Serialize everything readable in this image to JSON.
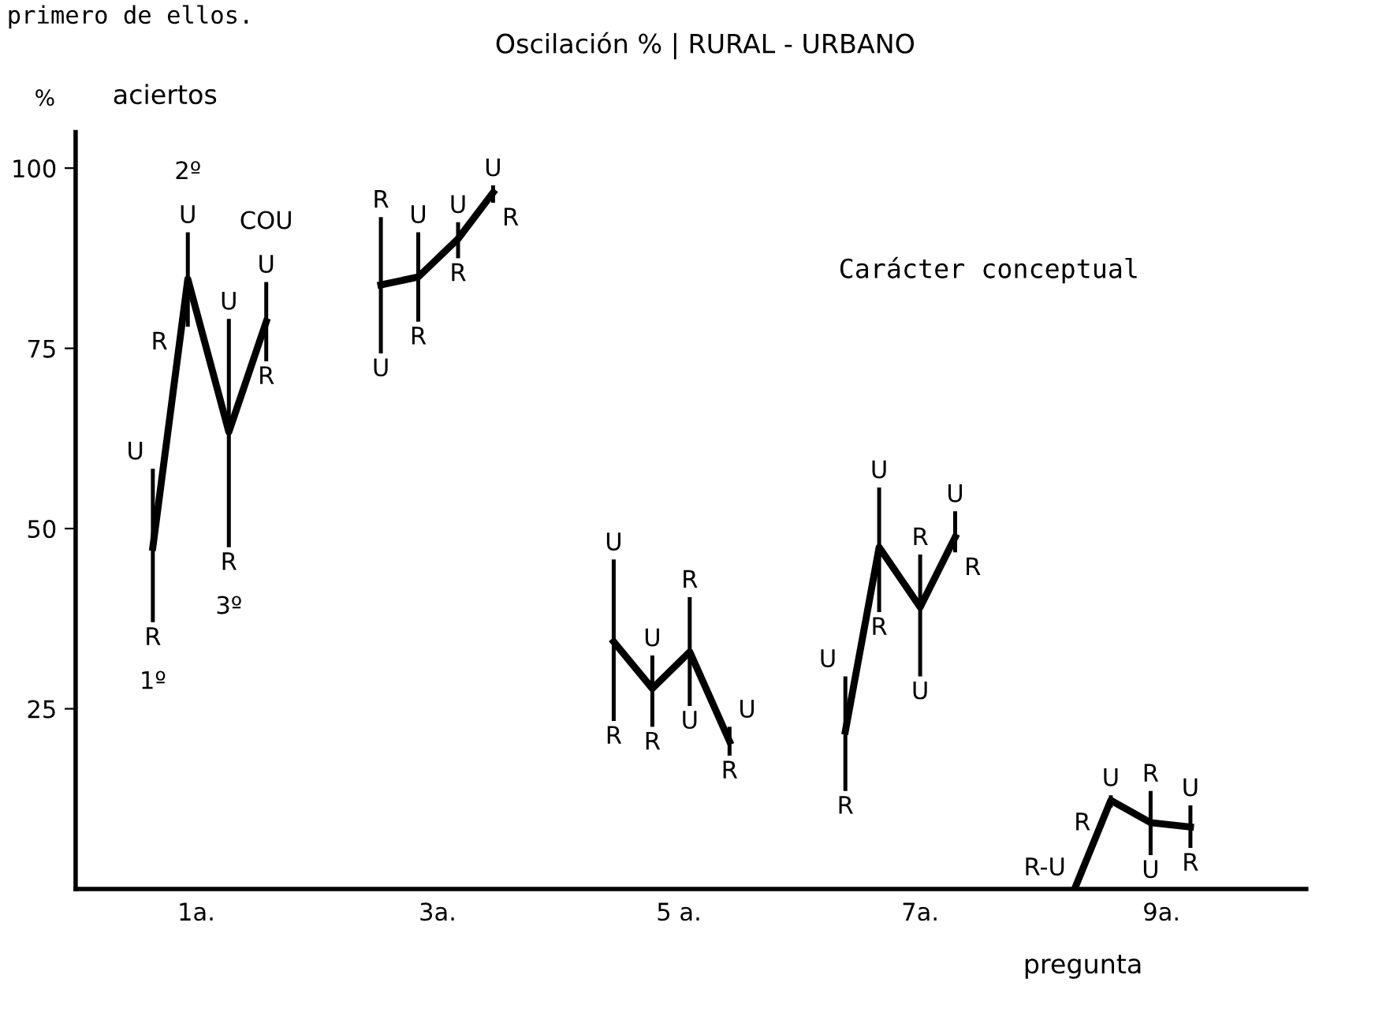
{
  "chart_data": {
    "type": "line",
    "title": "Oscilación % | RURAL - URBANO",
    "ylabel": "%",
    "xlabel": "pregunta",
    "xlim": [
      0,
      10.2
    ],
    "ylim": [
      0,
      105
    ],
    "xticks": [
      {
        "value": 1,
        "label": "1a."
      },
      {
        "value": 3,
        "label": "3a."
      },
      {
        "value": 5,
        "label": "5 a."
      },
      {
        "value": 7,
        "label": "7a."
      },
      {
        "value": 9,
        "label": "9a."
      }
    ],
    "yticks": [
      25,
      50,
      75,
      100
    ],
    "grid": false,
    "legend": false,
    "marker": "none",
    "line_style": "solid",
    "series": [
      {
        "color": "#000000",
        "x": [
          0.64,
          0.93,
          1.27,
          1.58
        ],
        "values": [
          47.4,
          84.6,
          63.4,
          78.7
        ],
        "errors": [
          [
            37.0,
            58.3
          ],
          [
            78.0,
            91.1
          ],
          [
            47.4,
            79.1
          ],
          [
            73.2,
            84.2
          ]
        ]
      },
      {
        "color": "#000000",
        "x": [
          2.53,
          2.84,
          3.17,
          3.46
        ],
        "values": [
          83.8,
          84.9,
          90.2,
          96.6
        ],
        "errors": [
          [
            74.3,
            93.2
          ],
          [
            78.7,
            91.1
          ],
          [
            87.5,
            92.5
          ],
          [
            95.2,
            97.6
          ]
        ]
      },
      {
        "color": "#000000",
        "x": [
          4.46,
          4.78,
          5.09,
          5.42
        ],
        "values": [
          34.3,
          27.8,
          32.9,
          20.5
        ],
        "errors": [
          [
            23.3,
            45.7
          ],
          [
            22.5,
            32.4
          ],
          [
            25.4,
            40.5
          ],
          [
            18.5,
            22.5
          ]
        ]
      },
      {
        "color": "#000000",
        "x": [
          6.38,
          6.66,
          7.0,
          7.29
        ],
        "values": [
          21.9,
          47.4,
          39.1,
          48.8
        ],
        "errors": [
          [
            13.6,
            29.5
          ],
          [
            38.4,
            55.7
          ],
          [
            29.5,
            46.4
          ],
          [
            46.7,
            52.4
          ]
        ]
      },
      {
        "color": "#000000",
        "x": [
          8.28,
          8.58,
          8.91,
          9.24
        ],
        "values": [
          0,
          12.3,
          9.2,
          8.6
        ],
        "errors": [
          null,
          [
            11.3,
            13.0
          ],
          [
            4.7,
            13.6
          ],
          [
            5.7,
            11.6
          ]
        ]
      }
    ],
    "annotations": [
      "primero de ellos.",
      "aciertos",
      "Carácter conceptual",
      {
        "text": "1º",
        "x": 0.64,
        "y": 37.0
      },
      {
        "text": "2º",
        "x": 0.93,
        "y": 91.1
      },
      {
        "text": "3º",
        "x": 1.27,
        "y": 47.4
      },
      {
        "text": "COU",
        "x": 1.58,
        "y": 84.2
      },
      {
        "text": "U",
        "x": 0.64,
        "y": 58.3
      },
      {
        "text": "R",
        "x": 0.64,
        "y": 37.0
      },
      {
        "text": "U",
        "x": 0.93,
        "y": 91.1
      },
      {
        "text": "R",
        "x": 0.93,
        "y": 78.0
      },
      {
        "text": "U",
        "x": 1.27,
        "y": 79.1
      },
      {
        "text": "R",
        "x": 1.27,
        "y": 47.4
      },
      {
        "text": "U",
        "x": 1.58,
        "y": 84.2
      },
      {
        "text": "R",
        "x": 1.58,
        "y": 73.2
      },
      {
        "text": "R",
        "x": 2.53,
        "y": 93.2
      },
      {
        "text": "U",
        "x": 2.53,
        "y": 74.3
      },
      {
        "text": "U",
        "x": 2.84,
        "y": 91.1
      },
      {
        "text": "R",
        "x": 2.84,
        "y": 78.7
      },
      {
        "text": "U",
        "x": 3.17,
        "y": 92.5
      },
      {
        "text": "R",
        "x": 3.17,
        "y": 87.5
      },
      {
        "text": "U",
        "x": 3.46,
        "y": 97.6
      },
      {
        "text": "R",
        "x": 3.46,
        "y": 95.2
      },
      {
        "text": "U",
        "x": 4.46,
        "y": 45.7
      },
      {
        "text": "R",
        "x": 4.46,
        "y": 23.3
      },
      {
        "text": "U",
        "x": 4.78,
        "y": 32.4
      },
      {
        "text": "R",
        "x": 4.78,
        "y": 22.5
      },
      {
        "text": "R",
        "x": 5.09,
        "y": 40.5
      },
      {
        "text": "U",
        "x": 5.09,
        "y": 25.4
      },
      {
        "text": "U",
        "x": 5.42,
        "y": 22.5
      },
      {
        "text": "R",
        "x": 5.42,
        "y": 18.5
      },
      {
        "text": "U",
        "x": 6.38,
        "y": 29.5
      },
      {
        "text": "R",
        "x": 6.38,
        "y": 13.6
      },
      {
        "text": "U",
        "x": 6.66,
        "y": 55.7
      },
      {
        "text": "R",
        "x": 6.66,
        "y": 38.4
      },
      {
        "text": "R",
        "x": 7.0,
        "y": 46.4
      },
      {
        "text": "U",
        "x": 7.0,
        "y": 29.5
      },
      {
        "text": "U",
        "x": 7.29,
        "y": 52.4
      },
      {
        "text": "R",
        "x": 7.29,
        "y": 46.7
      },
      {
        "text": "R-U",
        "x": 8.28,
        "y": 0
      },
      {
        "text": "U",
        "x": 8.58,
        "y": 13.0
      },
      {
        "text": "R",
        "x": 8.58,
        "y": 11.3
      },
      {
        "text": "R",
        "x": 8.91,
        "y": 13.6
      },
      {
        "text": "U",
        "x": 8.91,
        "y": 4.7
      },
      {
        "text": "U",
        "x": 9.24,
        "y": 11.6
      },
      {
        "text": "R",
        "x": 9.24,
        "y": 5.7
      }
    ]
  }
}
